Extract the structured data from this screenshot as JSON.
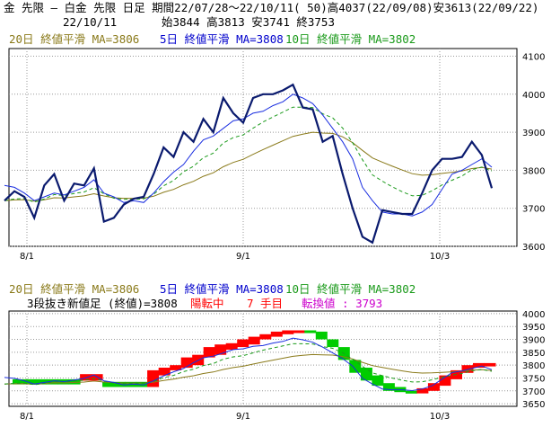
{
  "header": {
    "title_line": "金 先限 – 白金 先限 日足 期間22/07/28～22/10/11( 50)高4037(22/09/08)安3613(22/09/22)",
    "date": "22/10/11",
    "ohlc": "始3844 高3813 安3741 終3753"
  },
  "ma_labels": {
    "ma20": "20日 終値平滑 MA=3806",
    "ma5": "5日 終値平滑 MA=3808",
    "ma10": "10日 終値平滑 MA=3802"
  },
  "lower": {
    "ma20": "20日 終値平滑 MA=3806",
    "ma5": "5日 終値平滑 MA=3808",
    "ma10": "10日 終値平滑 MA=3802",
    "prefix": "3段抜き新値足 (終値)=3808",
    "status": "陽転中",
    "step": "7 手目",
    "turn": "転換値 : 3793"
  },
  "colors": {
    "close": "#0a1a6e",
    "ma5": "#1a2ee0",
    "ma10": "#1a9a1a",
    "ma20": "#8a7a1a",
    "up_block": "#ff0000",
    "down_block": "#00cc00",
    "olive_text": "#8a7a1a",
    "blue_text": "#0000cc",
    "green_text": "#1a9a1a",
    "red_text": "#ff0000",
    "magenta_text": "#cc00cc"
  },
  "chart_data": [
    {
      "type": "line",
      "x_ticks": [
        "8/1",
        "9/1",
        "10/3"
      ],
      "y_ticks": [
        3600,
        3700,
        3800,
        3900,
        4000,
        4100
      ],
      "ylim": [
        3600,
        4120
      ],
      "series": [
        {
          "name": "close",
          "values": [
            3720,
            3745,
            3730,
            3675,
            3760,
            3790,
            3720,
            3765,
            3760,
            3805,
            3665,
            3675,
            3710,
            3725,
            3730,
            3790,
            3860,
            3835,
            3900,
            3875,
            3935,
            3900,
            3990,
            3950,
            3925,
            3990,
            4000,
            4000,
            4010,
            4025,
            3965,
            3960,
            3875,
            3890,
            3790,
            3700,
            3625,
            3610,
            3695,
            3690,
            3685,
            3685,
            3740,
            3800,
            3830,
            3830,
            3835,
            3875,
            3840,
            3753
          ]
        },
        {
          "name": "ma5",
          "values": [
            3760,
            3755,
            3740,
            3720,
            3730,
            3740,
            3735,
            3745,
            3755,
            3775,
            3740,
            3730,
            3715,
            3720,
            3715,
            3740,
            3770,
            3795,
            3815,
            3850,
            3880,
            3890,
            3910,
            3930,
            3935,
            3950,
            3955,
            3970,
            3980,
            4000,
            3990,
            3975,
            3945,
            3910,
            3875,
            3830,
            3755,
            3720,
            3690,
            3685,
            3685,
            3680,
            3690,
            3710,
            3750,
            3790,
            3800,
            3815,
            3830,
            3808
          ]
        }
      ]
    },
    {
      "type": "line",
      "title": "3段抜き新値足 (終値)=3808",
      "x_ticks": [
        "8/1",
        "9/1",
        "10/3"
      ],
      "y_ticks": [
        3650,
        3700,
        3750,
        3800,
        3850,
        3900,
        3950,
        4000
      ],
      "ylim": [
        3640,
        4010
      ],
      "blocks": [
        {
          "dir": "down",
          "from": 3745,
          "to": 3725
        },
        {
          "dir": "down",
          "from": 3745,
          "to": 3725
        },
        {
          "dir": "down",
          "from": 3745,
          "to": 3725
        },
        {
          "dir": "down",
          "from": 3745,
          "to": 3725
        },
        {
          "dir": "down",
          "from": 3745,
          "to": 3725
        },
        {
          "dir": "down",
          "from": 3745,
          "to": 3725
        },
        {
          "dir": "up",
          "from": 3740,
          "to": 3765
        },
        {
          "dir": "up",
          "from": 3740,
          "to": 3765
        },
        {
          "dir": "down",
          "from": 3735,
          "to": 3715
        },
        {
          "dir": "down",
          "from": 3735,
          "to": 3715
        },
        {
          "dir": "down",
          "from": 3735,
          "to": 3715
        },
        {
          "dir": "down",
          "from": 3735,
          "to": 3715
        },
        {
          "dir": "up",
          "from": 3715,
          "to": 3780
        },
        {
          "dir": "up",
          "from": 3760,
          "to": 3790
        },
        {
          "dir": "up",
          "from": 3780,
          "to": 3800
        },
        {
          "dir": "up",
          "from": 3790,
          "to": 3830
        },
        {
          "dir": "up",
          "from": 3800,
          "to": 3840
        },
        {
          "dir": "up",
          "from": 3830,
          "to": 3870
        },
        {
          "dir": "up",
          "from": 3840,
          "to": 3880
        },
        {
          "dir": "up",
          "from": 3860,
          "to": 3885
        },
        {
          "dir": "up",
          "from": 3870,
          "to": 3900
        },
        {
          "dir": "up",
          "from": 3880,
          "to": 3910
        },
        {
          "dir": "up",
          "from": 3900,
          "to": 3920
        },
        {
          "dir": "up",
          "from": 3910,
          "to": 3930
        },
        {
          "dir": "up",
          "from": 3920,
          "to": 3935
        },
        {
          "dir": "up",
          "from": 3925,
          "to": 3935
        },
        {
          "dir": "down",
          "from": 3935,
          "to": 3925
        },
        {
          "dir": "down",
          "from": 3930,
          "to": 3900
        },
        {
          "dir": "down",
          "from": 3900,
          "to": 3870
        },
        {
          "dir": "down",
          "from": 3870,
          "to": 3820
        },
        {
          "dir": "down",
          "from": 3820,
          "to": 3770
        },
        {
          "dir": "down",
          "from": 3790,
          "to": 3740
        },
        {
          "dir": "down",
          "from": 3760,
          "to": 3720
        },
        {
          "dir": "down",
          "from": 3730,
          "to": 3700
        },
        {
          "dir": "down",
          "from": 3715,
          "to": 3695
        },
        {
          "dir": "down",
          "from": 3700,
          "to": 3690
        },
        {
          "dir": "up",
          "from": 3690,
          "to": 3710
        },
        {
          "dir": "up",
          "from": 3700,
          "to": 3730
        },
        {
          "dir": "up",
          "from": 3720,
          "to": 3760
        },
        {
          "dir": "up",
          "from": 3745,
          "to": 3780
        },
        {
          "dir": "up",
          "from": 3770,
          "to": 3800
        },
        {
          "dir": "up",
          "from": 3790,
          "to": 3808
        },
        {
          "dir": "up",
          "from": 3795,
          "to": 3808
        }
      ]
    }
  ]
}
